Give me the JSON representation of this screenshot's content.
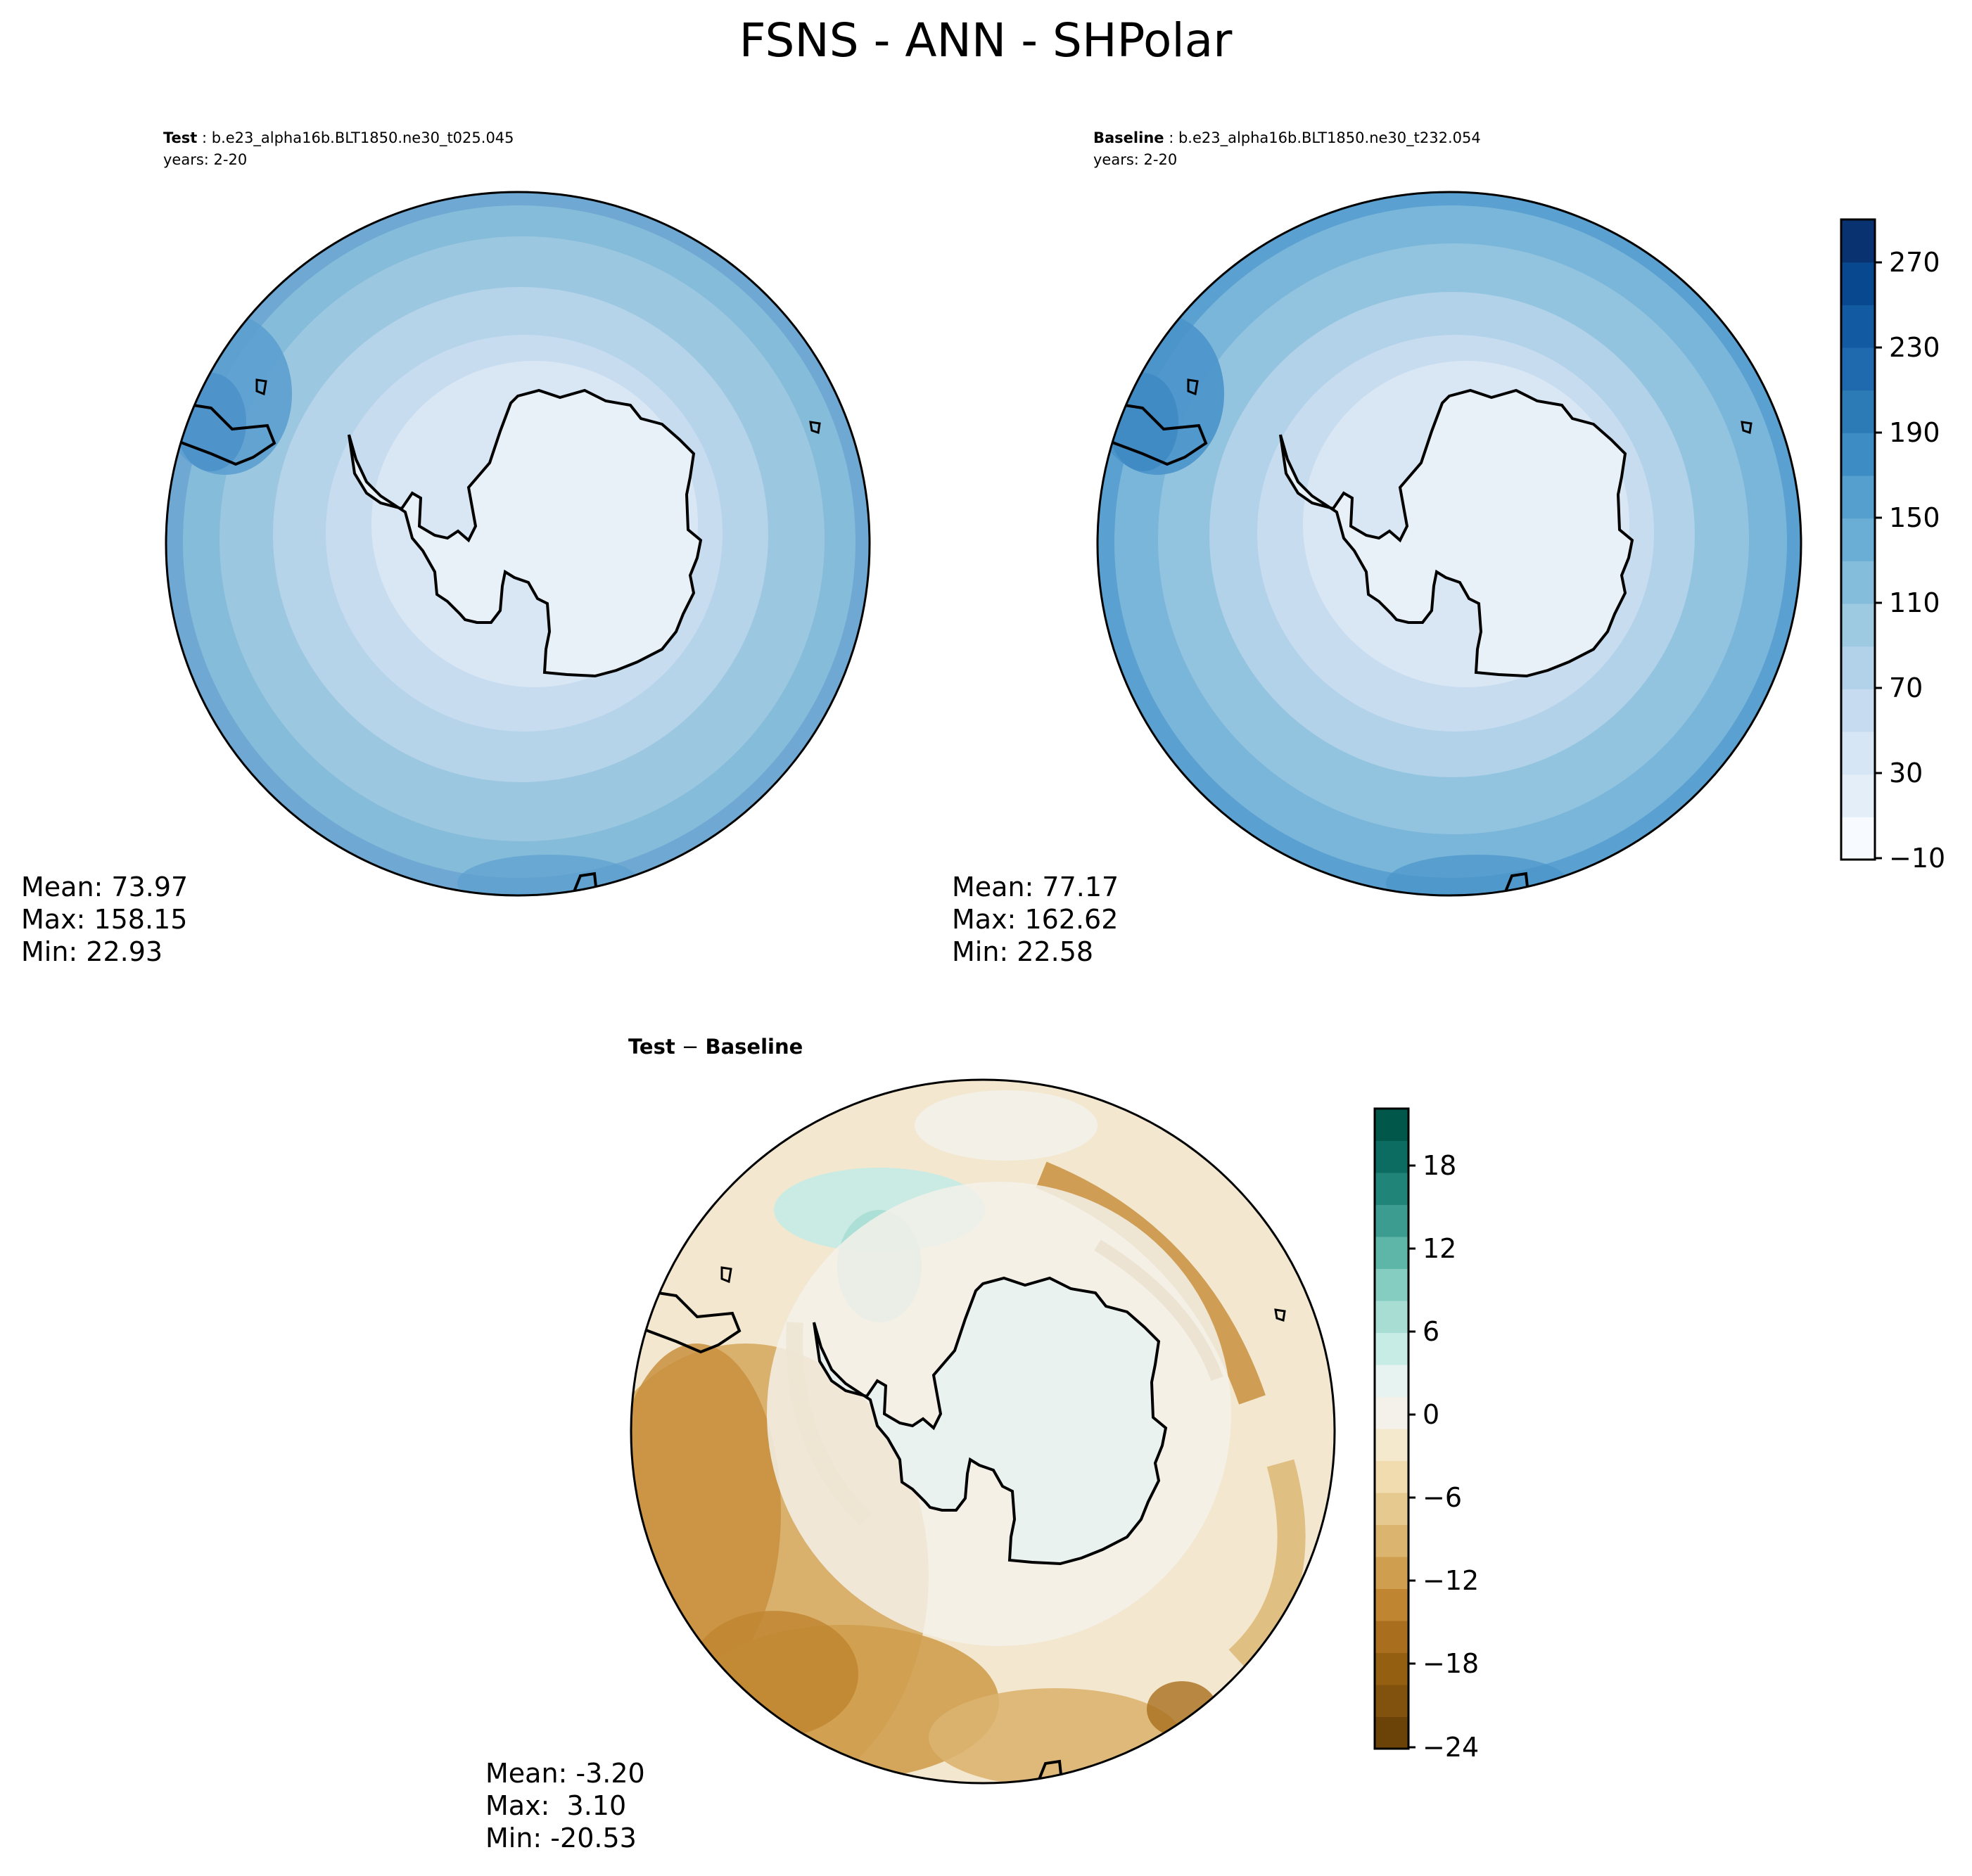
{
  "figure": {
    "title": "FSNS - ANN - SHPolar"
  },
  "panels": {
    "test": {
      "label_bold": "Test",
      "label_rest": " : b.e23_alpha16b.BLT1850.ne30_t025.045",
      "years": "years: 2-20",
      "stats": {
        "mean": "Mean: 73.97",
        "max": "Max: 158.15",
        "min": "Min: 22.93"
      },
      "rings": [
        "#6ea8d3",
        "#85bcda",
        "#9cc7e0",
        "#b5d4ea",
        "#c8dcf0",
        "#d9e7f5"
      ]
    },
    "baseline": {
      "label_bold": "Baseline",
      "label_rest": " : b.e23_alpha16b.BLT1850.ne30_t232.054",
      "years": "years: 2-20",
      "stats": {
        "mean": "Mean: 77.17",
        "max": "Max: 162.62",
        "min": "Min: 22.58"
      },
      "rings": [
        "#5aa0d0",
        "#7ab6da",
        "#93c4df",
        "#b1d2e9",
        "#c8dcf0",
        "#d9e7f5"
      ]
    },
    "diff": {
      "label_bold": "Test",
      "label_dash": " − ",
      "label_bold2": "Baseline",
      "stats": {
        "mean": "Mean: -3.20",
        "max": "Max:  3.10",
        "min": "Min: -20.53"
      }
    }
  },
  "colorbars": {
    "top": {
      "ticks": [
        "270",
        "230",
        "190",
        "150",
        "110",
        "70",
        "30",
        "−10"
      ],
      "colors": [
        "#f7fbff",
        "#e3eef9",
        "#d6e6f4",
        "#c6dbef",
        "#b1d2e8",
        "#9ecae1",
        "#84bcdb",
        "#6aaed6",
        "#549fcd",
        "#3d8dc4",
        "#2c7bb6",
        "#1f6aae",
        "#125aa1",
        "#08488e",
        "#083370"
      ]
    },
    "bottom": {
      "ticks": [
        "18",
        "12",
        "6",
        "0",
        "−6",
        "−12",
        "−18",
        "−24"
      ],
      "colors": [
        "#6b4208",
        "#81520d",
        "#955f12",
        "#a96f1e",
        "#bf8530",
        "#cf9e4f",
        "#dbb46f",
        "#e6c98f",
        "#f0dcaf",
        "#f5e9cd",
        "#f3f1ea",
        "#e6f3f1",
        "#c7ebe5",
        "#a7ddd3",
        "#85cdc1",
        "#5eb6a9",
        "#3d9c90",
        "#218478",
        "#0d6c61",
        "#015749"
      ]
    }
  },
  "continent_color": "#e8f1f7",
  "ocean_ring_color": "#e9f2ee"
}
